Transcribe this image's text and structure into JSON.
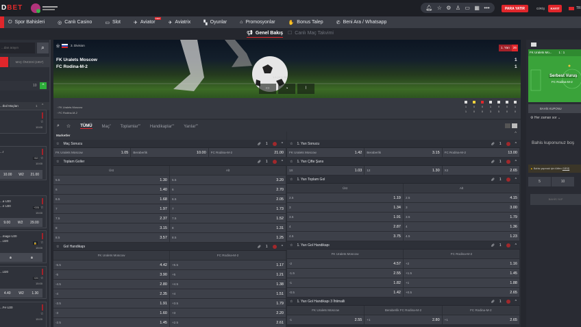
{
  "header": {
    "logo_text": "DBET",
    "logo_red": "BET",
    "logo_prefix": "D",
    "partner_logo": "GC Gaming Curacao",
    "icons": [
      "bell-icon",
      "star-icon",
      "gear-icon",
      "trophy-icon",
      "tv-icon",
      "calendar-icon",
      "more-icon"
    ],
    "deposit_label": "PARA YATIR",
    "login_label": "GİRİŞ",
    "register_label": "KAYIT",
    "lang_label": "TR"
  },
  "nav": [
    {
      "label": "Spor Bahisleri",
      "icon": "⏻"
    },
    {
      "label": "Canlı Casino",
      "icon": "◎"
    },
    {
      "label": "Slot",
      "icon": "▭"
    },
    {
      "label": "Aviator",
      "icon": "✈",
      "badge": "NEW"
    },
    {
      "label": "Aviatrix",
      "icon": "✈"
    },
    {
      "label": "Oyunlar",
      "icon": "▚"
    },
    {
      "label": "Promosyonlar",
      "icon": "⌂"
    },
    {
      "label": "Bonus Talep",
      "icon": "✋"
    },
    {
      "label": "Beni Ara / Whatsapp",
      "icon": "✆"
    }
  ],
  "subtabs": {
    "overview": "Genel Bakış",
    "calendar": "Canlı Maç Takvimi"
  },
  "sidebar": {
    "search_placeholder": "...dan arayın",
    "prematch_tab": "MAÇ ÖNCESİ (1957)",
    "group_count": "10",
    "league_title": "...tbol Maçları",
    "league_count": "1",
    "cards": [
      {
        "teams": [
          "",
          ""
        ],
        "time": "10:00",
        "more": ""
      },
      {
        "teams": [
          "...r",
          ""
        ],
        "time": "10:00",
        "more": "+52",
        "odds": [
          "10.00",
          "W2",
          "21.00"
        ]
      },
      {
        "teams": [
          "...a U20",
          "...n U20"
        ],
        "time": "15:00",
        "more": "+331",
        "odds": [
          "9.00",
          "W2",
          "29.00"
        ]
      },
      {
        "teams": [
          "...mago U20",
          "...U20"
        ],
        "time": "15:00",
        "more": "🔒",
        "locked": true
      },
      {
        "teams": [
          "...U20",
          ""
        ],
        "time": "15:00",
        "more": "+29",
        "odds": [
          "4.40",
          "W2",
          "1.30"
        ]
      },
      {
        "teams": [
          "...Fe U20",
          ""
        ],
        "time": "15:00",
        "more": ""
      }
    ]
  },
  "match": {
    "league": "3. Division",
    "home": "FK Uralets Moscow",
    "away": "FC Rodina-M-2",
    "home_score": "1",
    "away_score": "1",
    "period": "1. Yarı",
    "minute": "26",
    "ht_score": "1:1 (1:1) 26",
    "stats_icons": [
      "corner-icon",
      "yellow-card-icon",
      "red-card-icon",
      "corner-flag-icon",
      "attack-icon",
      "shot-icon",
      "penalty-icon"
    ],
    "home_stats": [
      "1",
      "0",
      "0",
      "1",
      "9",
      "0",
      "1"
    ],
    "away_stats": [
      "1",
      "0",
      "0",
      "3",
      "5",
      "0",
      "0"
    ]
  },
  "filters": [
    {
      "label": "TÜMÜ",
      "count": ""
    },
    {
      "label": "Maç",
      "count": "3"
    },
    {
      "label": "Toplamlar",
      "count": "12"
    },
    {
      "label": "Handikaplar",
      "count": "14"
    },
    {
      "label": "Yarılar",
      "count": "16"
    }
  ],
  "markets_title": "Marketler",
  "markets_left": [
    {
      "title": "Maç Sonucu",
      "count": "1",
      "kind": "row",
      "rows": [
        [
          "FK Uralets Moscow",
          "1.05",
          "Beraberlik",
          "10.00",
          "FC Rodina-M-2",
          "21.00"
        ]
      ]
    },
    {
      "title": "Toplam Goller",
      "count": "1",
      "kind": "cols",
      "cols": [
        "Üst",
        "Alt"
      ],
      "rows": [
        [
          "5.5",
          "1.30",
          "5.5",
          "3.20"
        ],
        [
          "6",
          "1.40",
          "6",
          "2.70"
        ],
        [
          "6.5",
          "1.68",
          "6.5",
          "2.05"
        ],
        [
          "7",
          "1.97",
          "7",
          "1.73"
        ],
        [
          "7.5",
          "2.37",
          "7.5",
          "1.52"
        ],
        [
          "8",
          "3.15",
          "8",
          "1.31"
        ],
        [
          "8.5",
          "3.57",
          "8.5",
          "1.25"
        ]
      ]
    },
    {
      "title": "Gol Handikapı",
      "count": "1",
      "kind": "cols",
      "cols": [
        "FK Uralets Moscow",
        "FC Rodina-M-2"
      ],
      "rows": [
        [
          "-5.5",
          "4.42",
          "+5.5",
          "1.17"
        ],
        [
          "-5",
          "3.90",
          "+5",
          "1.21"
        ],
        [
          "-4.5",
          "2.80",
          "+4.5",
          "1.38"
        ],
        [
          "-4",
          "2.35",
          "+4",
          "1.51"
        ],
        [
          "-3.5",
          "1.91",
          "+3.5",
          "1.79"
        ],
        [
          "-3",
          "1.60",
          "+3",
          "2.20"
        ],
        [
          "-2.5",
          "1.45",
          "+2.5",
          "2.61"
        ]
      ]
    }
  ],
  "markets_right": [
    {
      "title": "1. Yarı Sonucu",
      "count": "1",
      "kind": "row",
      "rows": [
        [
          "FK Uralets Moscow",
          "1.42",
          "Beraberlik",
          "3.15",
          "FC Rodina-M-2",
          "13.00"
        ]
      ]
    },
    {
      "title": "1. Yarı Çifte Şans",
      "count": "1",
      "kind": "row",
      "rows": [
        [
          "1X",
          "1.03",
          "12",
          "1.30",
          "X2",
          "2.65"
        ]
      ]
    },
    {
      "title": "1. Yarı Toplam Gol",
      "count": "1",
      "kind": "cols",
      "cols": [
        "Üst",
        "Alt"
      ],
      "rows": [
        [
          "2.5",
          "1.19",
          "2.5",
          "4.15"
        ],
        [
          "3",
          "1.34",
          "3",
          "3.00"
        ],
        [
          "3.5",
          "1.91",
          "3.5",
          "1.79"
        ],
        [
          "4",
          "2.87",
          "4",
          "1.36"
        ],
        [
          "4.5",
          "3.75",
          "4.5",
          "1.23"
        ]
      ]
    },
    {
      "title": "1. Yarı Gol Handikapı",
      "count": "1",
      "kind": "cols",
      "cols": [
        "FK Uralets Moscow",
        "FC Rodina-M-2"
      ],
      "rows": [
        [
          "-2",
          "4.57",
          "+2",
          "1.16"
        ],
        [
          "-1.5",
          "2.55",
          "+1.5",
          "1.45"
        ],
        [
          "-1",
          "1.82",
          "+1",
          "1.88"
        ],
        [
          "-0.5",
          "1.42",
          "+0.5",
          "2.65"
        ]
      ]
    },
    {
      "title": "1. Yarı Gol Handikapı 3 İhtimalli",
      "count": "1",
      "kind": "cols",
      "cols": [
        "FK Uralets Moscow",
        "Beraberlik FC Rodina-M-2",
        "FC Rodina-M-2"
      ],
      "rows": [
        [
          "-1",
          "2.55",
          "+1",
          "2.80",
          "+1",
          "2.65"
        ]
      ]
    }
  ],
  "betslip": {
    "field_home": "FK Uralets Mo...",
    "field_score": "1 : 1",
    "event": "Serbest Vuruş",
    "event_team": "FC Rodina-M-2",
    "title": "BAHİS KUPONU",
    "ask_label": "Her zaman sor",
    "empty_text": "Bahis kuponunuz boş",
    "warning": "Bahis yapmak için lütfen",
    "warn_link": "GİRİŞ",
    "stakes": [
      "5",
      "10"
    ],
    "place_label": "BAHİS YAP"
  },
  "colors": {
    "accent": "#e0262b",
    "field": "#3aa33a",
    "live": "#a0282b"
  }
}
